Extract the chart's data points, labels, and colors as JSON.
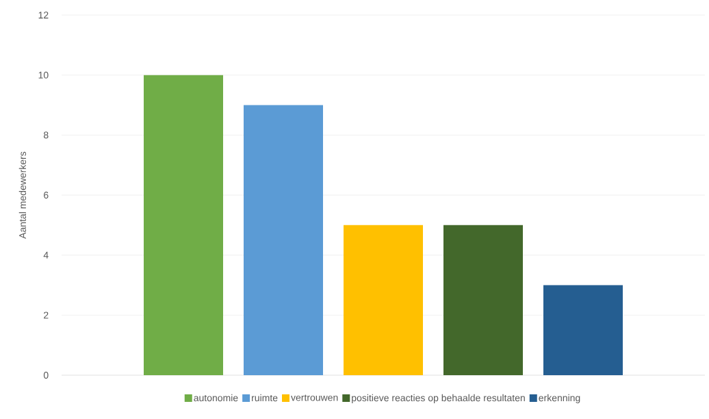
{
  "chart_data": {
    "type": "bar",
    "ylabel": "Aantal medewerkers",
    "categories": [
      null
    ],
    "series": [
      {
        "name": "autonomie",
        "color": "#70ad47",
        "values": [
          10
        ]
      },
      {
        "name": "ruimte",
        "color": "#5b9bd5",
        "values": [
          9
        ]
      },
      {
        "name": "vertrouwen",
        "color": "#ffc000",
        "values": [
          5
        ]
      },
      {
        "name": "positieve reacties op behaalde resultaten",
        "color": "#43682b",
        "values": [
          5
        ]
      },
      {
        "name": "erkenning",
        "color": "#255e91",
        "values": [
          3
        ]
      }
    ],
    "ylim": [
      0,
      12
    ],
    "yticks": [
      0,
      2,
      4,
      6,
      8,
      10,
      12
    ],
    "grid": "y",
    "legend": "bottom"
  }
}
